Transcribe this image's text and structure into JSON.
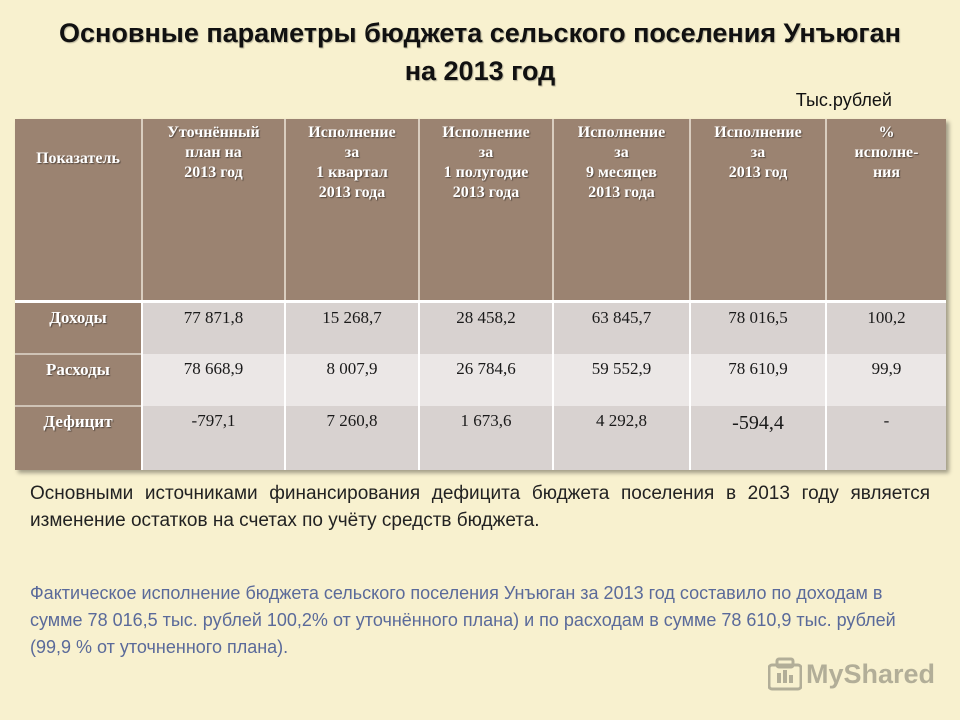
{
  "title": {
    "line1": "Основные параметры бюджета сельского поселения Унъюган",
    "line2": "на 2013 год"
  },
  "units": "Тыс.рублей",
  "table": {
    "headers": [
      [
        "Показатель"
      ],
      [
        "Уточнённый",
        "план на",
        "2013 год"
      ],
      [
        "Исполнение",
        "за",
        "1 квартал",
        "2013 года"
      ],
      [
        "Исполнение",
        "за",
        "1 полугодие",
        "2013 года"
      ],
      [
        "Исполнение",
        "за",
        "9 месяцев",
        "2013 года"
      ],
      [
        "Исполнение",
        "за",
        "2013 год"
      ],
      [
        "%",
        "исполне-",
        "ния"
      ]
    ],
    "rows": [
      {
        "label": "Доходы",
        "values": [
          "77 871,8",
          "15 268,7",
          "28 458,2",
          "63 845,7",
          "78 016,5",
          "100,2"
        ]
      },
      {
        "label": "Расходы",
        "values": [
          "78 668,9",
          "8 007,9",
          "26 784,6",
          "59 552,9",
          "78 610,9",
          "99,9"
        ]
      },
      {
        "label": "Дефицит",
        "values": [
          "-797,1",
          "7 260,8",
          "1 673,6",
          "4 292,8",
          "-594,4",
          "-"
        ]
      }
    ]
  },
  "paragraph1": "Основными источниками финансирования дефицита бюджета поселения в 2013 году является изменение остатков на счетах по учёту средств бюджета.",
  "paragraph2": "Фактическое исполнение бюджета сельского поселения Унъюган за 2013 год составило по доходам в сумме 78 016,5 тыс. рублей 100,2% от уточнённого плана) и по расходам в сумме 78 610,9 тыс. рублей (99,9 % от уточненного плана).",
  "watermark": {
    "text": "MyShared",
    "icon": "myshared-logo-icon"
  },
  "colors": {
    "header_bg": "#9b8371",
    "background": "#f8f1cf",
    "paragraph2_text": "#5a6a9a"
  }
}
